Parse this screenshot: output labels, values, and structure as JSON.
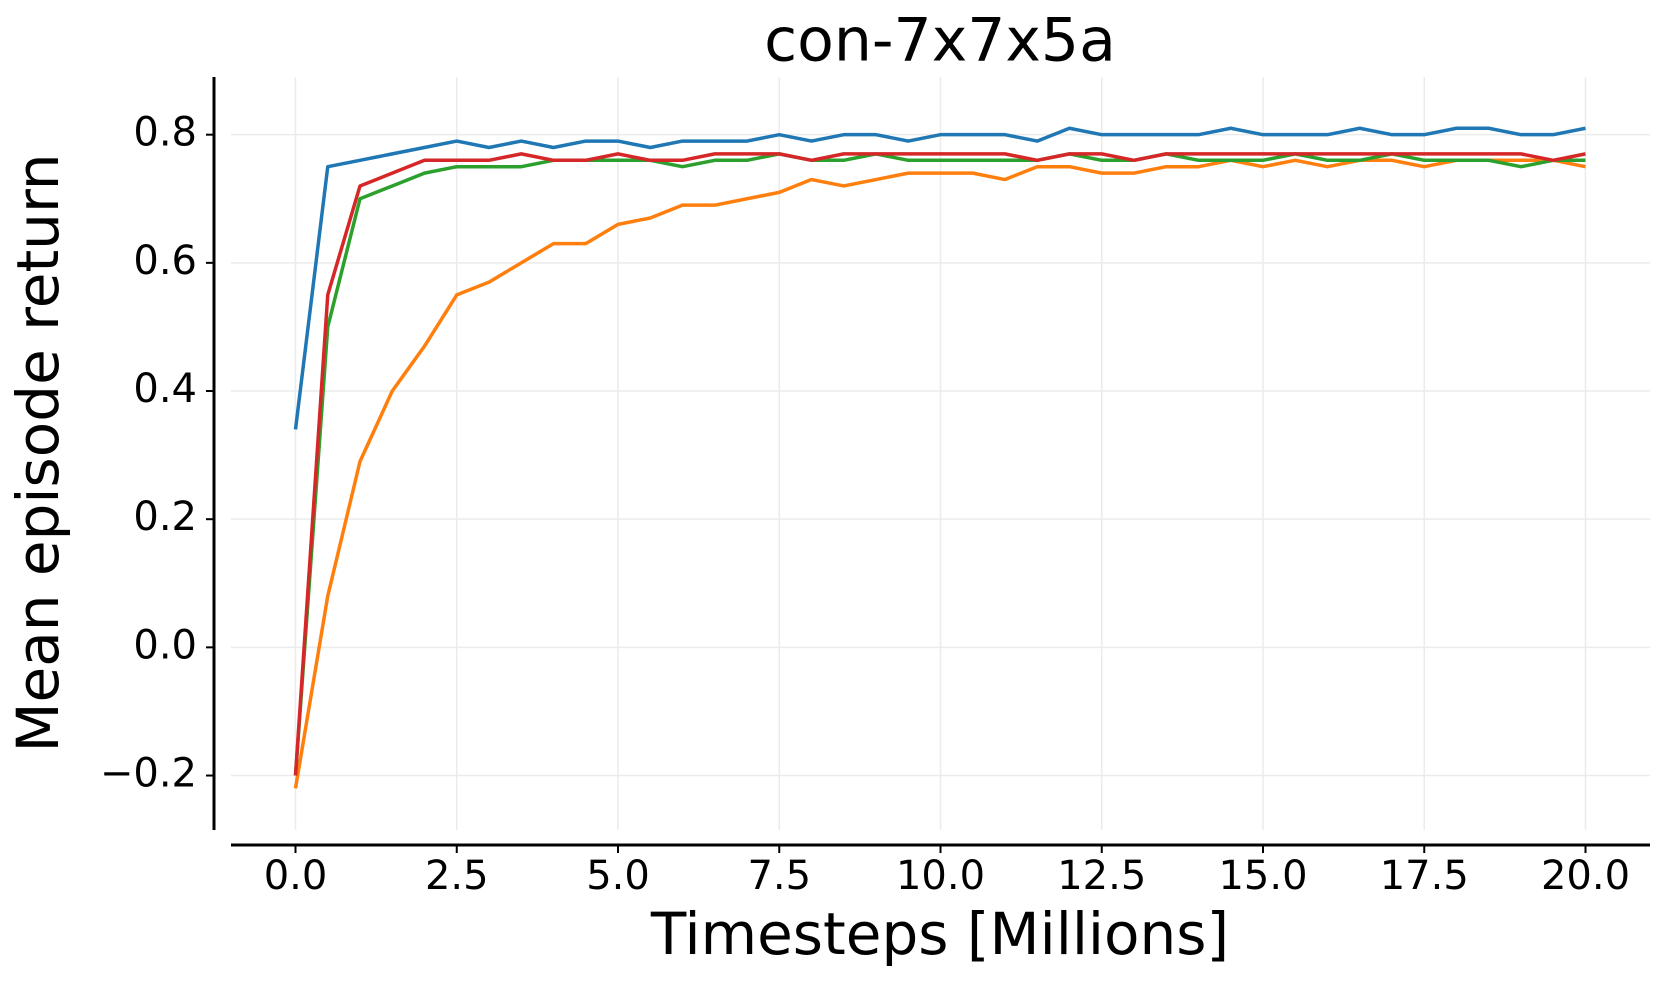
{
  "chart_data": {
    "type": "line",
    "title": "con-7x7x5a",
    "x_label": "Timesteps [Millions]",
    "y_label": "Mean episode return",
    "x": [
      0,
      0.5,
      1,
      1.5,
      2,
      2.5,
      3,
      3.5,
      4,
      4.5,
      5,
      5.5,
      6,
      6.5,
      7,
      7.5,
      8,
      8.5,
      9,
      9.5,
      10,
      10.5,
      11,
      11.5,
      12,
      12.5,
      13,
      13.5,
      14,
      14.5,
      15,
      15.5,
      16,
      16.5,
      17,
      17.5,
      18,
      18.5,
      19,
      19.5,
      20
    ],
    "series": [
      {
        "color": "#1f77b4",
        "values": [
          0.34,
          0.75,
          0.76,
          0.77,
          0.78,
          0.79,
          0.78,
          0.79,
          0.78,
          0.79,
          0.79,
          0.78,
          0.79,
          0.79,
          0.79,
          0.8,
          0.79,
          0.8,
          0.8,
          0.79,
          0.8,
          0.8,
          0.8,
          0.79,
          0.81,
          0.8,
          0.8,
          0.8,
          0.8,
          0.81,
          0.8,
          0.8,
          0.8,
          0.81,
          0.8,
          0.8,
          0.81,
          0.81,
          0.8,
          0.8,
          0.81
        ]
      },
      {
        "color": "#ff7f0e",
        "values": [
          -0.22,
          0.08,
          0.29,
          0.4,
          0.47,
          0.55,
          0.57,
          0.6,
          0.63,
          0.63,
          0.66,
          0.67,
          0.69,
          0.69,
          0.7,
          0.71,
          0.73,
          0.72,
          0.73,
          0.74,
          0.74,
          0.74,
          0.73,
          0.75,
          0.75,
          0.74,
          0.74,
          0.75,
          0.75,
          0.76,
          0.75,
          0.76,
          0.75,
          0.76,
          0.76,
          0.75,
          0.76,
          0.76,
          0.76,
          0.76,
          0.75
        ]
      },
      {
        "color": "#2ca02c",
        "values": [
          -0.2,
          0.5,
          0.7,
          0.72,
          0.74,
          0.75,
          0.75,
          0.75,
          0.76,
          0.76,
          0.76,
          0.76,
          0.75,
          0.76,
          0.76,
          0.77,
          0.76,
          0.76,
          0.77,
          0.76,
          0.76,
          0.76,
          0.76,
          0.76,
          0.77,
          0.76,
          0.76,
          0.77,
          0.76,
          0.76,
          0.76,
          0.77,
          0.76,
          0.76,
          0.77,
          0.76,
          0.76,
          0.76,
          0.75,
          0.76,
          0.76
        ]
      },
      {
        "color": "#d62728",
        "values": [
          -0.2,
          0.55,
          0.72,
          0.74,
          0.76,
          0.76,
          0.76,
          0.77,
          0.76,
          0.76,
          0.77,
          0.76,
          0.76,
          0.77,
          0.77,
          0.77,
          0.76,
          0.77,
          0.77,
          0.77,
          0.77,
          0.77,
          0.77,
          0.76,
          0.77,
          0.77,
          0.76,
          0.77,
          0.77,
          0.77,
          0.77,
          0.77,
          0.77,
          0.77,
          0.77,
          0.77,
          0.77,
          0.77,
          0.77,
          0.76,
          0.77
        ]
      }
    ],
    "xlim": [
      -1,
      21
    ],
    "ylim": [
      -0.285,
      0.89
    ],
    "xticks": [
      {
        "value": 0,
        "label": "0.0"
      },
      {
        "value": 2.5,
        "label": "2.5"
      },
      {
        "value": 5,
        "label": "5.0"
      },
      {
        "value": 7.5,
        "label": "7.5"
      },
      {
        "value": 10,
        "label": "10.0"
      },
      {
        "value": 12.5,
        "label": "12.5"
      },
      {
        "value": 15,
        "label": "15.0"
      },
      {
        "value": 17.5,
        "label": "17.5"
      },
      {
        "value": 20,
        "label": "20.0"
      }
    ],
    "yticks": [
      {
        "value": -0.2,
        "label": "−0.2"
      },
      {
        "value": 0,
        "label": "0.0"
      },
      0.2,
      0.4,
      0.6,
      0.8
    ],
    "grid": true
  }
}
